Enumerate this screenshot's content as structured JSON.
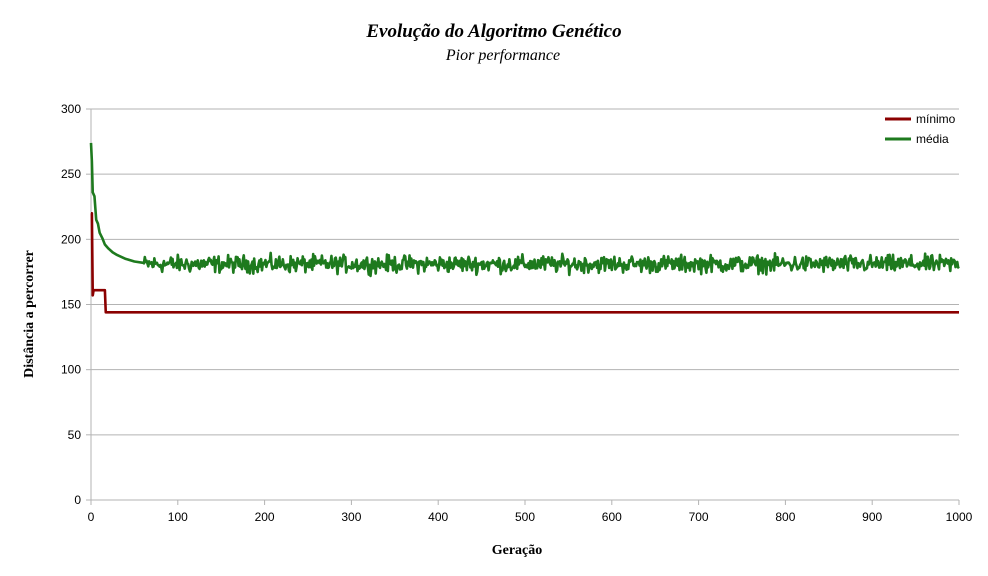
{
  "chart_data": {
    "type": "line",
    "title": "Evolução do Algoritmo Genético",
    "subtitle": "Pior performance",
    "xlabel": "Geração",
    "ylabel": "Distância a percorrer",
    "xlim": [
      0,
      1000
    ],
    "ylim": [
      0,
      300
    ],
    "xticks": [
      0,
      100,
      200,
      300,
      400,
      500,
      600,
      700,
      800,
      900,
      1000
    ],
    "yticks": [
      0,
      50,
      100,
      150,
      200,
      250,
      300
    ],
    "grid": "horizontal",
    "legend_position": "top-right",
    "series": [
      {
        "name": "mínimo",
        "color": "#8b0000",
        "points": [
          [
            0,
            220
          ],
          [
            1,
            220
          ],
          [
            2,
            157
          ],
          [
            3,
            161
          ],
          [
            5,
            161
          ],
          [
            16,
            161
          ],
          [
            17,
            144
          ],
          [
            1000,
            144
          ]
        ]
      },
      {
        "name": "média",
        "color": "#1e7a1e",
        "head": [
          [
            0,
            274
          ],
          [
            1,
            260
          ],
          [
            2,
            236
          ],
          [
            4,
            233
          ],
          [
            6,
            215
          ],
          [
            8,
            212
          ],
          [
            10,
            205
          ],
          [
            13,
            201
          ],
          [
            16,
            196
          ],
          [
            20,
            193
          ],
          [
            25,
            190
          ],
          [
            30,
            188
          ],
          [
            40,
            185
          ],
          [
            50,
            183
          ],
          [
            60,
            182
          ]
        ],
        "tail_mean": 181,
        "tail_amplitude": 6,
        "tail_range": [
          60,
          1000
        ]
      }
    ]
  }
}
